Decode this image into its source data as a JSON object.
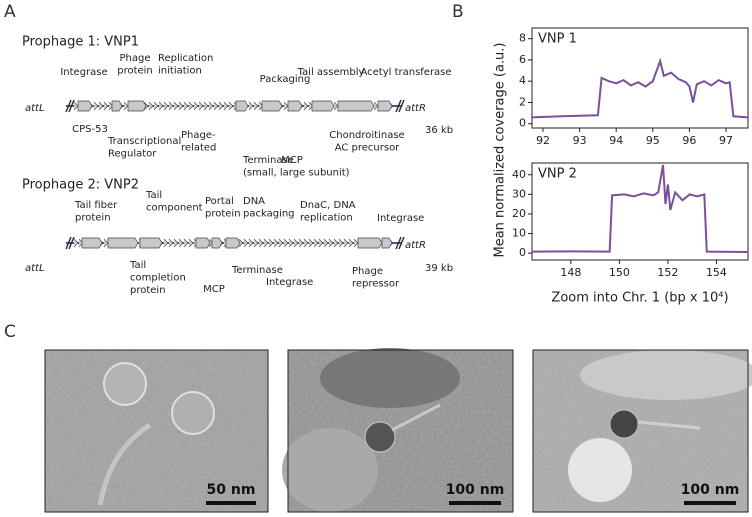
{
  "panel_labels": [
    "A",
    "B",
    "C"
  ],
  "prophage_maps": [
    {
      "title": "Prophage 1: VNP1",
      "att_left": "attL",
      "att_right": "attR",
      "length": "36 kb",
      "labels_above": [
        {
          "lines": [
            "Integrase"
          ]
        },
        {
          "lines": [
            "Phage",
            "protein"
          ]
        },
        {
          "lines": [
            "Replication",
            "initiation"
          ]
        },
        {
          "lines": [
            "Packaging"
          ]
        },
        {
          "lines": [
            "Tail assembly"
          ]
        },
        {
          "lines": [
            "Acetyl transferase"
          ]
        }
      ],
      "labels_below": [
        {
          "lines": [
            "CPS-53"
          ]
        },
        {
          "lines": [
            "Transcriptional",
            "Regulator"
          ]
        },
        {
          "lines": [
            "Phage-",
            "related"
          ]
        },
        {
          "lines": [
            "Terminase",
            "(small, large subunit)"
          ]
        },
        {
          "lines": [
            "MCP"
          ]
        },
        {
          "lines": [
            "Chondroitinase",
            "AC precursor"
          ]
        }
      ]
    },
    {
      "title": "Prophage 2: VNP2",
      "att_left": "attL",
      "att_right": "attR",
      "length": "39 kb",
      "labels_above": [
        {
          "lines": [
            "Tail fiber",
            "protein"
          ]
        },
        {
          "lines": [
            "Tail",
            "component"
          ]
        },
        {
          "lines": [
            "Portal",
            "protein"
          ]
        },
        {
          "lines": [
            "DNA",
            "packaging"
          ]
        },
        {
          "lines": [
            "DnaC, DNA",
            "replication"
          ]
        },
        {
          "lines": [
            "Integrase"
          ]
        }
      ],
      "labels_below": [
        {
          "lines": [
            "Tail",
            "completion",
            "protein"
          ]
        },
        {
          "lines": [
            "MCP"
          ]
        },
        {
          "lines": [
            "Terminase"
          ]
        },
        {
          "lines": [
            "Integrase"
          ]
        },
        {
          "lines": [
            "Phage",
            "repressor"
          ]
        }
      ]
    }
  ],
  "panel_b": {
    "y_label": "Mean normalized coverage (a.u.)",
    "x_label": "Zoom into Chr. 1 (bp x 10⁴)"
  },
  "chart_data": [
    {
      "type": "line",
      "title": "VNP 1",
      "color": "#7b4f9d",
      "x": [
        91.7,
        92.5,
        93.5,
        93.6,
        93.8,
        94.0,
        94.2,
        94.4,
        94.6,
        94.8,
        95.0,
        95.2,
        95.3,
        95.5,
        95.7,
        95.9,
        96.0,
        96.1,
        96.2,
        96.4,
        96.6,
        96.8,
        97.0,
        97.1,
        97.2,
        97.6
      ],
      "values": [
        0.6,
        0.7,
        0.8,
        4.3,
        4.0,
        3.8,
        4.1,
        3.6,
        3.9,
        3.5,
        4.0,
        5.9,
        4.5,
        4.8,
        4.2,
        3.9,
        3.5,
        2.0,
        3.7,
        4.0,
        3.6,
        4.1,
        3.8,
        3.9,
        0.7,
        0.6
      ],
      "xlim": [
        91.7,
        97.6
      ],
      "xticks": [
        92,
        93,
        94,
        95,
        96,
        97
      ],
      "ylim": [
        -0.4,
        9
      ],
      "yticks": [
        0,
        2,
        4,
        6,
        8
      ]
    },
    {
      "type": "line",
      "title": "VNP 2",
      "color": "#7b4f9d",
      "x": [
        146.4,
        148,
        149.6,
        149.7,
        150.2,
        150.6,
        151.0,
        151.4,
        151.6,
        151.8,
        151.9,
        152.0,
        152.1,
        152.3,
        152.6,
        152.9,
        153.2,
        153.5,
        153.6,
        155.3
      ],
      "values": [
        0.8,
        0.9,
        0.8,
        29.5,
        30,
        29,
        30.5,
        29.5,
        31,
        45,
        25,
        35,
        22,
        31,
        27,
        30,
        29,
        30,
        0.8,
        0.6
      ],
      "xlim": [
        146.4,
        155.3
      ],
      "xticks": [
        148,
        150,
        152,
        154
      ],
      "ylim": [
        -3.5,
        46
      ],
      "yticks": [
        0,
        10,
        20,
        30,
        40
      ]
    }
  ],
  "micrographs": [
    {
      "scale_bar": "50 nm"
    },
    {
      "scale_bar": "100 nm"
    },
    {
      "scale_bar": "100 nm"
    }
  ]
}
